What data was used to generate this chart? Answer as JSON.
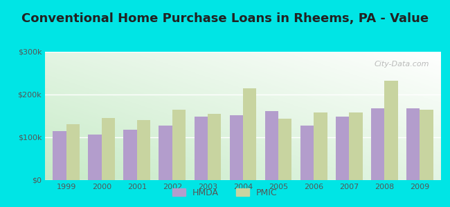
{
  "title": "Conventional Home Purchase Loans in Rheems, PA - Value",
  "years": [
    1999,
    2000,
    2001,
    2002,
    2003,
    2004,
    2005,
    2006,
    2007,
    2008,
    2009
  ],
  "hmda": [
    115000,
    107000,
    118000,
    128000,
    148000,
    152000,
    162000,
    128000,
    148000,
    168000,
    168000
  ],
  "pmic": [
    130000,
    145000,
    140000,
    165000,
    155000,
    215000,
    143000,
    158000,
    158000,
    232000,
    165000
  ],
  "hmda_color": "#b39dcc",
  "pmic_color": "#c8d4a0",
  "outer_background": "#00e5e5",
  "grid_color": "#ffffff",
  "ylim": [
    0,
    300000
  ],
  "ytick_labels": [
    "$0",
    "$100k",
    "$200k",
    "$300k"
  ],
  "legend_hmda": "HMDA",
  "legend_pmic": "PMIC",
  "title_fontsize": 13,
  "watermark": "City-Data.com"
}
